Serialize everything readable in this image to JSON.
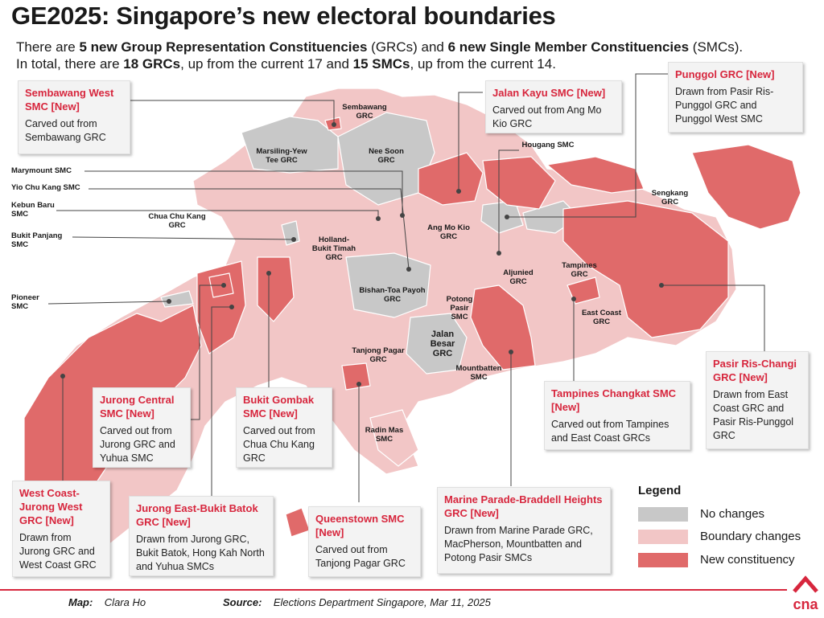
{
  "title": "GE2025: Singapore’s new electoral boundaries",
  "subtitle": {
    "p1": "There are ",
    "b1": "5 new Group Representation Constituencies",
    "p2": " (GRCs) and ",
    "b2": "6 new Single Member Constituencies",
    "p3": " (SMCs).",
    "p4": "In total, there are ",
    "b3": "18 GRCs",
    "p5": ", up from the current 17 and ",
    "b4": "15 SMCs",
    "p6": ", up from the current 14."
  },
  "colors": {
    "no_change": "#c8c8c8",
    "boundary_change": "#f2c6c6",
    "new": "#e06a6a",
    "accent": "#d7263d"
  },
  "labels": {
    "sembawang": "Sembawang\nGRC",
    "marsiling": "Marsiling-Yew\nTee GRC",
    "nee_soon": "Nee Soon\nGRC",
    "chua_chu_kang": "Chua Chu Kang\nGRC",
    "holland": "Holland-\nBukit Timah\nGRC",
    "ang_mo_kio": "Ang Mo Kio\nGRC",
    "bishan": "Bishan-Toa Payoh\nGRC",
    "aljunied": "Aljunied\nGRC",
    "tampines": "Tampines\nGRC",
    "east_coast": "East Coast\nGRC",
    "potong_pasir": "Potong\nPasir\nSMC",
    "jalan_besar": "Jalan\nBesar\nGRC",
    "tanjong_pagar": "Tanjong Pagar\nGRC",
    "mountbatten": "Mountbatten\nSMC",
    "radin_mas": "Radin Mas\nSMC",
    "hougang": "Hougang SMC",
    "sengkang": "Sengkang\nGRC"
  },
  "side_labels": {
    "marymount": "Marymount SMC",
    "yio_chu_kang": "Yio Chu Kang SMC",
    "kebun_baru": "Kebun Baru\nSMC",
    "bukit_panjang": "Bukit Panjang\nSMC",
    "pioneer": "Pioneer\nSMC"
  },
  "callouts": {
    "sembawang_west": {
      "heading": "Sembawang West SMC [New]",
      "desc": "Carved out from Sembawang GRC"
    },
    "jalan_kayu": {
      "heading": "Jalan Kayu SMC [New]",
      "desc": "Carved out from Ang Mo Kio GRC"
    },
    "punggol": {
      "heading": "Punggol GRC [New]",
      "desc": "Drawn from Pasir Ris-Punggol GRC and Punggol West SMC"
    },
    "pasir_ris_changi": {
      "heading": "Pasir Ris-Changi GRC [New]",
      "desc": "Drawn from East Coast GRC and Pasir Ris-Punggol GRC"
    },
    "tampines_changkat": {
      "heading": "Tampines Changkat SMC [New]",
      "desc": "Carved out from Tampines and East Coast GRCs"
    },
    "jurong_central": {
      "heading": "Jurong Central SMC [New]",
      "desc": "Carved out from Jurong GRC and Yuhua SMC"
    },
    "bukit_gombak": {
      "heading": "Bukit Gombak SMC [New]",
      "desc": "Carved out from Chua Chu Kang GRC"
    },
    "west_coast_jurong_west": {
      "heading": "West Coast-Jurong West GRC [New]",
      "desc": "Drawn from Jurong GRC and West Coast GRC"
    },
    "jurong_east_bukit_batok": {
      "heading": "Jurong East-Bukit Batok GRC [New]",
      "desc": "Drawn from Jurong GRC, Bukit Batok, Hong Kah North and Yuhua SMCs"
    },
    "queenstown": {
      "heading": "Queenstown SMC [New]",
      "desc": "Carved out from Tanjong Pagar GRC"
    },
    "marine_parade": {
      "heading": "Marine Parade-Braddell Heights GRC [New]",
      "desc": "Drawn from Marine Parade GRC, MacPherson, Mountbatten and Potong Pasir SMCs"
    }
  },
  "legend": {
    "title": "Legend",
    "no_change": "No changes",
    "boundary": "Boundary changes",
    "new": "New constituency"
  },
  "footer": {
    "map_label": "Map:",
    "map_value": "Clara Ho",
    "source_label": "Source:",
    "source_value": "Elections Department Singapore, Mar 11, 2025"
  },
  "logo_text": "cna"
}
